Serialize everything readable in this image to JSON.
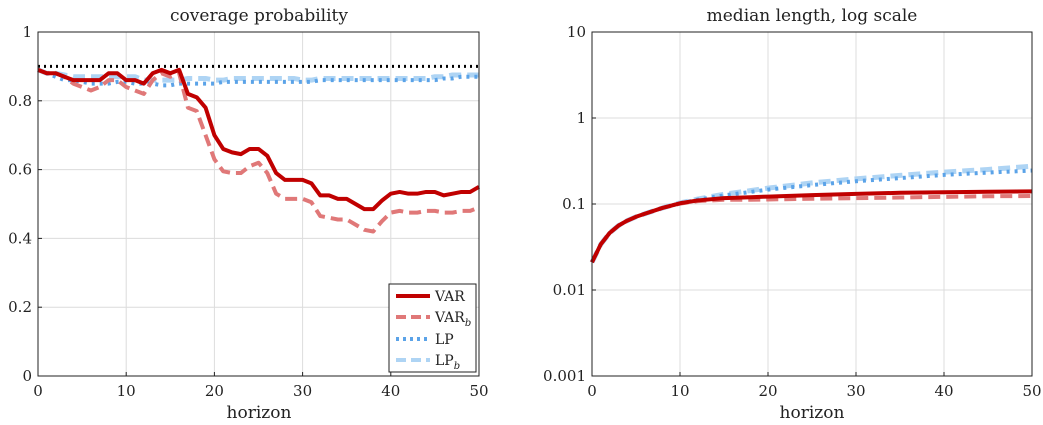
{
  "chart_data": [
    {
      "type": "line",
      "title": "coverage probability",
      "xlabel": "horizon",
      "ylabel": "",
      "xlim": [
        0,
        50
      ],
      "ylim": [
        0,
        1
      ],
      "scale": "linear",
      "grid": true,
      "legend_position": "bottom-right",
      "xticks": [
        "0",
        "10",
        "20",
        "30",
        "40",
        "50"
      ],
      "yticks": [
        "0",
        "0.2",
        "0.4",
        "0.6",
        "0.8",
        "1"
      ],
      "x": [
        0,
        1,
        2,
        3,
        4,
        5,
        6,
        7,
        8,
        9,
        10,
        11,
        12,
        13,
        14,
        15,
        16,
        17,
        18,
        19,
        20,
        21,
        22,
        23,
        24,
        25,
        26,
        27,
        28,
        29,
        30,
        31,
        32,
        33,
        34,
        35,
        36,
        37,
        38,
        39,
        40,
        41,
        42,
        43,
        44,
        45,
        46,
        47,
        48,
        49,
        50
      ],
      "reference_line": {
        "y": 0.9,
        "color": "#000000",
        "style": "dotted"
      },
      "series": [
        {
          "name": "VAR",
          "color": "#c00000",
          "style": "solid",
          "values": [
            0.89,
            0.88,
            0.88,
            0.87,
            0.86,
            0.86,
            0.86,
            0.86,
            0.88,
            0.88,
            0.86,
            0.86,
            0.85,
            0.88,
            0.89,
            0.88,
            0.89,
            0.82,
            0.81,
            0.78,
            0.7,
            0.66,
            0.65,
            0.645,
            0.66,
            0.66,
            0.64,
            0.59,
            0.57,
            0.57,
            0.57,
            0.56,
            0.525,
            0.525,
            0.515,
            0.515,
            0.5,
            0.485,
            0.485,
            0.51,
            0.53,
            0.535,
            0.53,
            0.53,
            0.535,
            0.535,
            0.525,
            0.53,
            0.535,
            0.535,
            0.55
          ]
        },
        {
          "name": "VARb",
          "color": "#e07878",
          "style": "dashed",
          "values": [
            0.89,
            0.88,
            0.88,
            0.87,
            0.85,
            0.84,
            0.83,
            0.84,
            0.86,
            0.86,
            0.84,
            0.83,
            0.82,
            0.86,
            0.88,
            0.87,
            0.88,
            0.78,
            0.77,
            0.7,
            0.63,
            0.595,
            0.59,
            0.59,
            0.61,
            0.62,
            0.59,
            0.53,
            0.515,
            0.515,
            0.515,
            0.505,
            0.465,
            0.46,
            0.455,
            0.455,
            0.44,
            0.425,
            0.42,
            0.45,
            0.475,
            0.48,
            0.475,
            0.475,
            0.48,
            0.48,
            0.475,
            0.475,
            0.48,
            0.48,
            0.49
          ]
        },
        {
          "name": "LP",
          "color": "#5ba3e8",
          "style": "dotted",
          "values": [
            0.89,
            0.88,
            0.87,
            0.86,
            0.86,
            0.855,
            0.85,
            0.85,
            0.85,
            0.855,
            0.855,
            0.85,
            0.85,
            0.85,
            0.845,
            0.845,
            0.85,
            0.85,
            0.85,
            0.85,
            0.85,
            0.855,
            0.855,
            0.855,
            0.855,
            0.855,
            0.855,
            0.855,
            0.855,
            0.855,
            0.855,
            0.855,
            0.86,
            0.86,
            0.86,
            0.86,
            0.86,
            0.86,
            0.86,
            0.86,
            0.86,
            0.86,
            0.86,
            0.86,
            0.86,
            0.86,
            0.865,
            0.865,
            0.87,
            0.87,
            0.87
          ]
        },
        {
          "name": "LPb",
          "color": "#aed4f4",
          "style": "dashed",
          "values": [
            0.89,
            0.88,
            0.88,
            0.875,
            0.87,
            0.87,
            0.87,
            0.87,
            0.87,
            0.87,
            0.87,
            0.87,
            0.86,
            0.86,
            0.86,
            0.86,
            0.86,
            0.865,
            0.865,
            0.865,
            0.86,
            0.86,
            0.865,
            0.865,
            0.865,
            0.865,
            0.865,
            0.865,
            0.865,
            0.865,
            0.86,
            0.86,
            0.865,
            0.865,
            0.865,
            0.865,
            0.865,
            0.865,
            0.865,
            0.865,
            0.865,
            0.865,
            0.865,
            0.865,
            0.865,
            0.87,
            0.87,
            0.875,
            0.875,
            0.875,
            0.875
          ]
        }
      ]
    },
    {
      "type": "line",
      "title": "median length, log scale",
      "xlabel": "horizon",
      "ylabel": "",
      "xlim": [
        0,
        50
      ],
      "ylim": [
        0.001,
        10
      ],
      "scale": "log",
      "grid": true,
      "xticks": [
        "0",
        "10",
        "20",
        "30",
        "40",
        "50"
      ],
      "yticks": [
        "0.001",
        "0.01",
        "0.1",
        "1",
        "10"
      ],
      "x": [
        0,
        1,
        2,
        3,
        4,
        5,
        6,
        8,
        10,
        12,
        15,
        18,
        20,
        25,
        30,
        35,
        40,
        45,
        50
      ],
      "series": [
        {
          "name": "VAR",
          "color": "#c00000",
          "style": "solid",
          "values": [
            0.021,
            0.034,
            0.046,
            0.056,
            0.064,
            0.071,
            0.077,
            0.09,
            0.102,
            0.11,
            0.117,
            0.12,
            0.122,
            0.127,
            0.131,
            0.135,
            0.137,
            0.139,
            0.14
          ]
        },
        {
          "name": "VARb",
          "color": "#e07878",
          "style": "dashed",
          "values": [
            0.021,
            0.034,
            0.046,
            0.056,
            0.064,
            0.071,
            0.077,
            0.09,
            0.101,
            0.108,
            0.112,
            0.112,
            0.113,
            0.115,
            0.117,
            0.119,
            0.121,
            0.123,
            0.124
          ]
        },
        {
          "name": "LP",
          "color": "#5ba3e8",
          "style": "dotted",
          "values": [
            0.021,
            0.034,
            0.046,
            0.056,
            0.064,
            0.071,
            0.077,
            0.09,
            0.102,
            0.112,
            0.126,
            0.138,
            0.147,
            0.166,
            0.184,
            0.2,
            0.218,
            0.232,
            0.245
          ]
        },
        {
          "name": "LPb",
          "color": "#aed4f4",
          "style": "dashed",
          "values": [
            0.021,
            0.034,
            0.046,
            0.056,
            0.064,
            0.071,
            0.077,
            0.09,
            0.103,
            0.114,
            0.13,
            0.143,
            0.153,
            0.176,
            0.196,
            0.215,
            0.235,
            0.252,
            0.275
          ]
        }
      ]
    }
  ],
  "legend": {
    "entries": [
      {
        "label": "VAR",
        "sub": ""
      },
      {
        "label": "VAR",
        "sub": "b"
      },
      {
        "label": "LP",
        "sub": ""
      },
      {
        "label": "LP",
        "sub": "b"
      }
    ]
  }
}
